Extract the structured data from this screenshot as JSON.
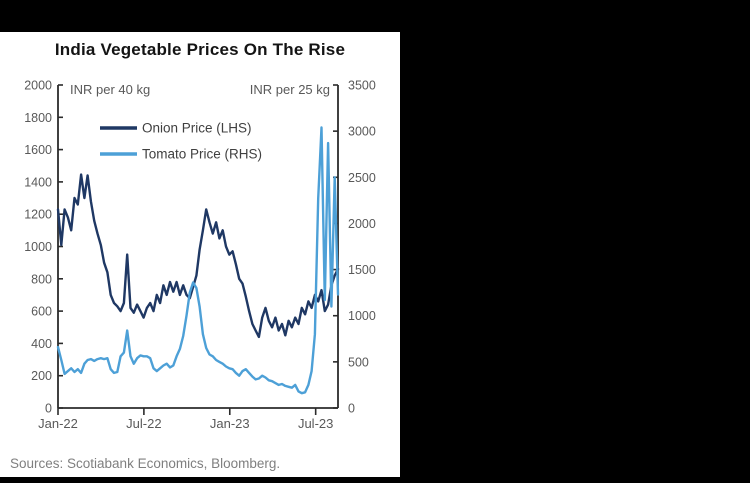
{
  "header": {
    "title": "India Vegetable Prices On The Rise"
  },
  "footer": {
    "sources": "Sources: Scotiabank Economics, Bloomberg."
  },
  "colors": {
    "background": "#000000",
    "panel": "#ffffff",
    "axis": "#2b2b2b",
    "axis_text": "#595959",
    "legend_text": "#404040",
    "onion": "#1f3864",
    "tomato": "#4da0d7"
  },
  "chart_data": {
    "type": "line",
    "title": "India Vegetable Prices On The Rise",
    "grid": false,
    "legend_position": "top-left inside plot",
    "x_axis": {
      "tick_labels": [
        "Jan-22",
        "Jul-22",
        "Jan-23",
        "Jul-23"
      ],
      "tick_months": [
        0,
        6,
        12,
        18
      ],
      "span_months": 19.56
    },
    "left_axis": {
      "annotation": "INR per 40 kg",
      "min": 0,
      "max": 2000,
      "step": 200
    },
    "right_axis": {
      "annotation": "INR per 25 kg",
      "min": 0,
      "max": 3500,
      "step": 500
    },
    "series": [
      {
        "name": "Onion Price (LHS)",
        "axis": "left",
        "color": "#1f3864",
        "values": [
          1230,
          1010,
          1230,
          1180,
          1100,
          1300,
          1260,
          1445,
          1300,
          1440,
          1280,
          1160,
          1080,
          1010,
          900,
          840,
          700,
          650,
          630,
          600,
          650,
          950,
          620,
          590,
          640,
          600,
          560,
          620,
          650,
          600,
          700,
          650,
          760,
          700,
          780,
          720,
          780,
          700,
          760,
          700,
          680,
          750,
          820,
          980,
          1100,
          1230,
          1150,
          1080,
          1150,
          1050,
          1100,
          1000,
          950,
          970,
          890,
          800,
          770,
          690,
          600,
          520,
          480,
          440,
          560,
          620,
          540,
          500,
          560,
          480,
          520,
          450,
          540,
          500,
          560,
          520,
          620,
          580,
          660,
          620,
          700,
          660,
          730,
          600,
          640,
          760,
          820,
          860
        ]
      },
      {
        "name": "Tomato Price (RHS)",
        "axis": "right",
        "color": "#4da0d7",
        "values": [
          660,
          520,
          370,
          400,
          430,
          390,
          420,
          380,
          480,
          520,
          530,
          510,
          530,
          540,
          530,
          540,
          420,
          380,
          390,
          560,
          600,
          840,
          560,
          480,
          540,
          570,
          560,
          560,
          540,
          430,
          400,
          430,
          460,
          480,
          440,
          460,
          560,
          640,
          780,
          1000,
          1250,
          1360,
          1300,
          1100,
          800,
          650,
          580,
          560,
          520,
          500,
          480,
          450,
          430,
          420,
          380,
          350,
          400,
          420,
          380,
          340,
          310,
          320,
          350,
          330,
          300,
          290,
          270,
          250,
          260,
          240,
          230,
          220,
          250,
          180,
          160,
          170,
          250,
          400,
          800,
          2270,
          3040,
          1170,
          2870,
          1100,
          2500,
          1230
        ]
      }
    ]
  }
}
